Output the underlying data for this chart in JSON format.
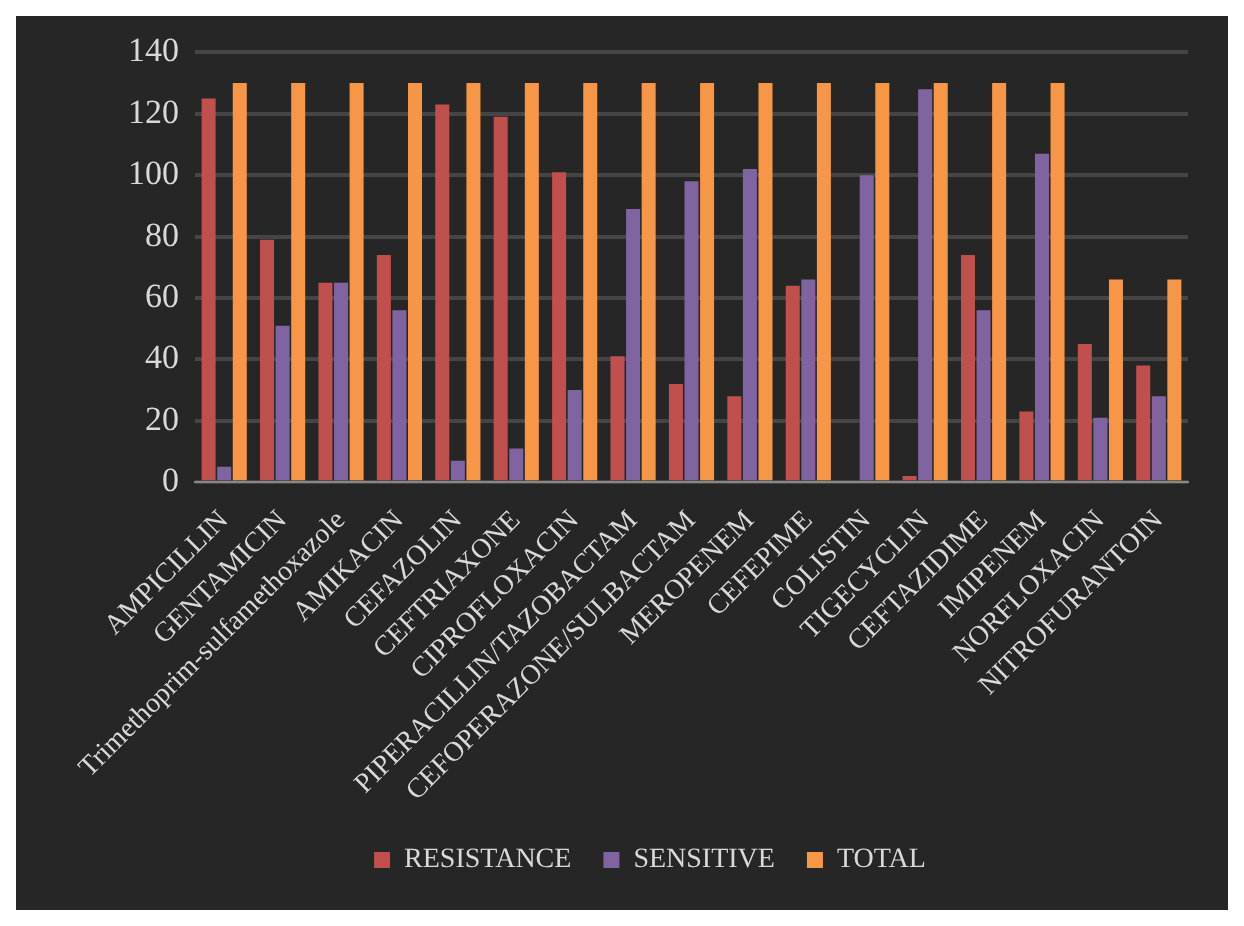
{
  "chart_data": {
    "type": "bar",
    "categories": [
      "AMPICILLIN",
      "GENTAMICIN",
      "Trimethoprim-sulfamethoxazole",
      "AMIKACIN",
      "CEFAZOLIN",
      "CEFTRIAXONE",
      "CIPROFLOXACIN",
      "PIPERACILLIN/TAZOBACTAM",
      "CEFOPERAZONE/SULBACTAM",
      "MEROPENEM",
      "CEFEPIME",
      "COLISTIN",
      "TIGECYCLIN",
      "CEFTAZIDIME",
      "IMIPENEM",
      "NORFLOXACIN",
      "NITROFURANTOIN"
    ],
    "series": [
      {
        "name": "RESISTANCE",
        "color": "#c0504d",
        "values": [
          125,
          79,
          65,
          74,
          123,
          119,
          101,
          41,
          32,
          28,
          64,
          0,
          2,
          74,
          23,
          45,
          38
        ]
      },
      {
        "name": "SENSITIVE",
        "color": "#8064a2",
        "values": [
          5,
          51,
          65,
          56,
          7,
          11,
          30,
          89,
          98,
          102,
          66,
          100,
          128,
          56,
          107,
          21,
          28
        ]
      },
      {
        "name": "TOTAL",
        "color": "#f79646",
        "values": [
          130,
          130,
          130,
          130,
          130,
          130,
          130,
          130,
          130,
          130,
          130,
          130,
          130,
          130,
          130,
          66,
          66
        ]
      }
    ],
    "ylim": [
      0,
      140
    ],
    "yticks": [
      0,
      20,
      40,
      60,
      80,
      100,
      120,
      140
    ],
    "grid": "y",
    "legend": "bottom"
  }
}
